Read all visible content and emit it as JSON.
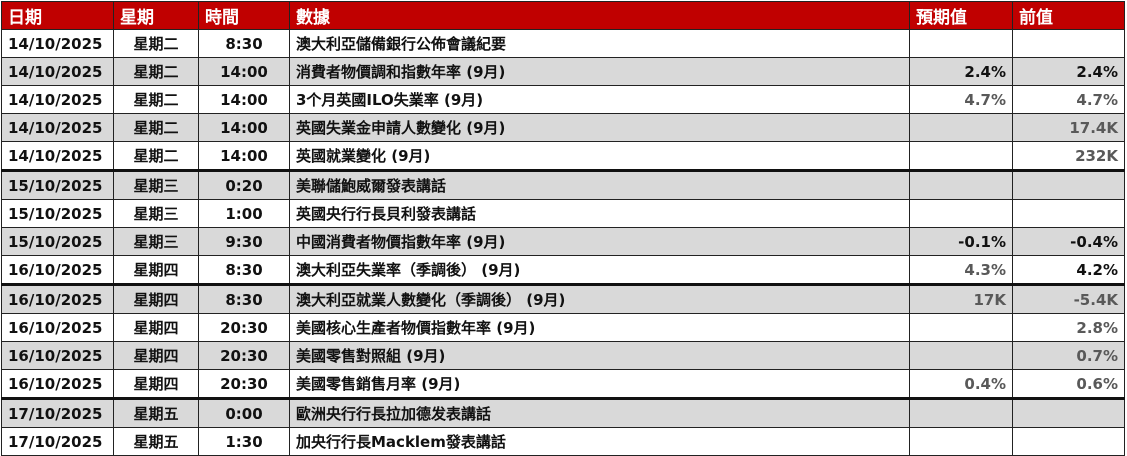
{
  "colors": {
    "header_bg": "#c00000",
    "header_text": "#ffffff",
    "alt_row": "#d9d9d9",
    "dark_value": "#111111",
    "gray_value": "#595959"
  },
  "headers": [
    "日期",
    "星期",
    "時間",
    "數據",
    "預期值",
    "前值"
  ],
  "rows": [
    {
      "date": "14/10/2025",
      "day": "星期二",
      "time": "8:30",
      "event": "澳大利亞儲備銀行公佈會議紀要",
      "forecast": "",
      "forecast_tone": "",
      "previous": "",
      "previous_tone": ""
    },
    {
      "date": "14/10/2025",
      "day": "星期二",
      "time": "14:00",
      "event": "消費者物價調和指數年率 (9月)",
      "forecast": "2.4%",
      "forecast_tone": "dark",
      "previous": "2.4%",
      "previous_tone": "dark"
    },
    {
      "date": "14/10/2025",
      "day": "星期二",
      "time": "14:00",
      "event": "3个月英國ILO失業率 (9月)",
      "forecast": "4.7%",
      "forecast_tone": "gray",
      "previous": "4.7%",
      "previous_tone": "gray"
    },
    {
      "date": "14/10/2025",
      "day": "星期二",
      "time": "14:00",
      "event": "英國失業金申請人數變化 (9月)",
      "forecast": "",
      "forecast_tone": "",
      "previous": "17.4K",
      "previous_tone": "gray"
    },
    {
      "date": "14/10/2025",
      "day": "星期二",
      "time": "14:00",
      "event": "英國就業變化 (9月)",
      "forecast": "",
      "forecast_tone": "",
      "previous": "232K",
      "previous_tone": "gray"
    },
    {
      "date": "15/10/2025",
      "day": "星期三",
      "time": "0:20",
      "event": "美聯儲鮑威爾發表講話",
      "forecast": "",
      "forecast_tone": "",
      "previous": "",
      "previous_tone": ""
    },
    {
      "date": "15/10/2025",
      "day": "星期三",
      "time": "1:00",
      "event": "英國央行行長貝利發表講話",
      "forecast": "",
      "forecast_tone": "",
      "previous": "",
      "previous_tone": ""
    },
    {
      "date": "15/10/2025",
      "day": "星期三",
      "time": "9:30",
      "event": "中國消費者物價指數年率 (9月)",
      "forecast": "-0.1%",
      "forecast_tone": "dark",
      "previous": "-0.4%",
      "previous_tone": "dark"
    },
    {
      "date": "16/10/2025",
      "day": "星期四",
      "time": "8:30",
      "event": "澳大利亞失業率（季調後） (9月)",
      "forecast": "4.3%",
      "forecast_tone": "gray",
      "previous": "4.2%",
      "previous_tone": "dark"
    },
    {
      "date": "16/10/2025",
      "day": "星期四",
      "time": "8:30",
      "event": "澳大利亞就業人數變化（季調後） (9月)",
      "forecast": "17K",
      "forecast_tone": "gray",
      "previous": "-5.4K",
      "previous_tone": "gray"
    },
    {
      "date": "16/10/2025",
      "day": "星期四",
      "time": "20:30",
      "event": "美國核心生產者物價指數年率 (9月)",
      "forecast": "",
      "forecast_tone": "",
      "previous": "2.8%",
      "previous_tone": "gray"
    },
    {
      "date": "16/10/2025",
      "day": "星期四",
      "time": "20:30",
      "event": "美國零售對照組 (9月)",
      "forecast": "",
      "forecast_tone": "",
      "previous": "0.7%",
      "previous_tone": "gray"
    },
    {
      "date": "16/10/2025",
      "day": "星期四",
      "time": "20:30",
      "event": "美國零售銷售月率 (9月)",
      "forecast": "0.4%",
      "forecast_tone": "gray",
      "previous": "0.6%",
      "previous_tone": "gray"
    },
    {
      "date": "17/10/2025",
      "day": "星期五",
      "time": "0:00",
      "event": "歐洲央行行長拉加德发表講話",
      "forecast": "",
      "forecast_tone": "",
      "previous": "",
      "previous_tone": ""
    },
    {
      "date": "17/10/2025",
      "day": "星期五",
      "time": "1:30",
      "event": "加央行行長Macklem發表講話",
      "forecast": "",
      "forecast_tone": "",
      "previous": "",
      "previous_tone": ""
    }
  ]
}
